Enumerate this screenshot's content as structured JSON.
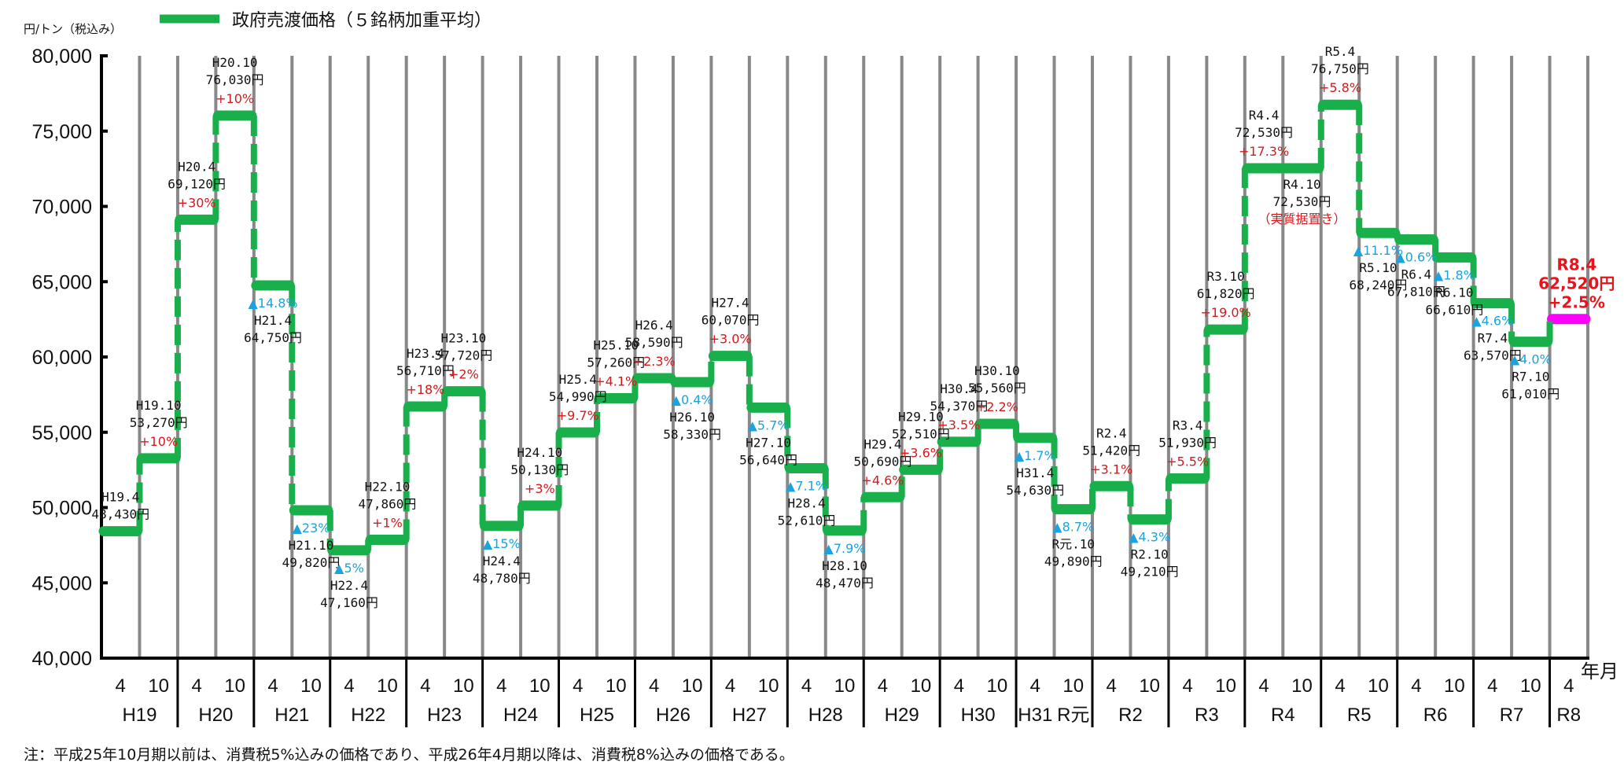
{
  "chart_data": {
    "type": "line",
    "style": "step",
    "title": "政府売渡価格（５銘柄加重平均）",
    "ylabel": "円/トン（税込み）",
    "xlabel": "年月",
    "ylim": [
      40000,
      80000
    ],
    "yticks": [
      {
        "value": 40000,
        "label": "40,000"
      },
      {
        "value": 45000,
        "label": "45,000"
      },
      {
        "value": 50000,
        "label": "50,000"
      },
      {
        "value": 55000,
        "label": "55,000"
      },
      {
        "value": 60000,
        "label": "60,000"
      },
      {
        "value": 65000,
        "label": "65,000"
      },
      {
        "value": 70000,
        "label": "70,000"
      },
      {
        "value": 75000,
        "label": "75,000"
      },
      {
        "value": 80000,
        "label": "80,000"
      }
    ],
    "grid": "vertical",
    "legend": {
      "position": "top",
      "entries": [
        {
          "name": "政府売渡価格（５銘柄加重平均）",
          "color": "#19b04b"
        }
      ]
    },
    "colors": {
      "line": "#19b04b",
      "latest": "#ff00ff",
      "increase": "#d7191c",
      "decrease": "#1aa3df",
      "grid": "#888888"
    },
    "points": [
      {
        "period": "H19.4",
        "value": 48430,
        "value_label": "48,430円",
        "change": ""
      },
      {
        "period": "H19.10",
        "value": 53270,
        "value_label": "53,270円",
        "change": "+10%"
      },
      {
        "period": "H20.4",
        "value": 69120,
        "value_label": "69,120円",
        "change": "+30%"
      },
      {
        "period": "H20.10",
        "value": 76030,
        "value_label": "76,030円",
        "change": "+10%"
      },
      {
        "period": "H21.4",
        "value": 64750,
        "value_label": "64,750円",
        "change": "▲14.8%"
      },
      {
        "period": "H21.10",
        "value": 49820,
        "value_label": "49,820円",
        "change": "▲23%"
      },
      {
        "period": "H22.4",
        "value": 47160,
        "value_label": "47,160円",
        "change": "▲5%"
      },
      {
        "period": "H22.10",
        "value": 47860,
        "value_label": "47,860円",
        "change": "+1%"
      },
      {
        "period": "H23.4",
        "value": 56710,
        "value_label": "56,710円",
        "change": "+18%"
      },
      {
        "period": "H23.10",
        "value": 57720,
        "value_label": "57,720円",
        "change": "+2%"
      },
      {
        "period": "H24.4",
        "value": 48780,
        "value_label": "48,780円",
        "change": "▲15%"
      },
      {
        "period": "H24.10",
        "value": 50130,
        "value_label": "50,130円",
        "change": "+3%"
      },
      {
        "period": "H25.4",
        "value": 54990,
        "value_label": "54,990円",
        "change": "+9.7%"
      },
      {
        "period": "H25.10",
        "value": 57260,
        "value_label": "57,260円",
        "change": "+4.1%"
      },
      {
        "period": "H26.4",
        "value": 58590,
        "value_label": "58,590円",
        "change": "+2.3%"
      },
      {
        "period": "H26.10",
        "value": 58330,
        "value_label": "58,330円",
        "change": "▲0.4%"
      },
      {
        "period": "H27.4",
        "value": 60070,
        "value_label": "60,070円",
        "change": "+3.0%"
      },
      {
        "period": "H27.10",
        "value": 56640,
        "value_label": "56,640円",
        "change": "▲5.7%"
      },
      {
        "period": "H28.4",
        "value": 52610,
        "value_label": "52,610円",
        "change": "▲7.1%"
      },
      {
        "period": "H28.10",
        "value": 48470,
        "value_label": "48,470円",
        "change": "▲7.9%"
      },
      {
        "period": "H29.4",
        "value": 50690,
        "value_label": "50,690円",
        "change": "+4.6%"
      },
      {
        "period": "H29.10",
        "value": 52510,
        "value_label": "52,510円",
        "change": "+3.6%"
      },
      {
        "period": "H30.4",
        "value": 54370,
        "value_label": "54,370円",
        "change": "+3.5%"
      },
      {
        "period": "H30.10",
        "value": 55560,
        "value_label": "55,560円",
        "change": "+2.2%"
      },
      {
        "period": "H31.4",
        "value": 54630,
        "value_label": "54,630円",
        "change": "▲1.7%"
      },
      {
        "period": "R元.10",
        "value": 49890,
        "value_label": "49,890円",
        "change": "▲8.7%"
      },
      {
        "period": "R2.4",
        "value": 51420,
        "value_label": "51,420円",
        "change": "+3.1%"
      },
      {
        "period": "R2.10",
        "value": 49210,
        "value_label": "49,210円",
        "change": "▲4.3%"
      },
      {
        "period": "R3.4",
        "value": 51930,
        "value_label": "51,930円",
        "change": "+5.5%"
      },
      {
        "period": "R3.10",
        "value": 61820,
        "value_label": "61,820円",
        "change": "+19.0%"
      },
      {
        "period": "R4.4",
        "value": 72530,
        "value_label": "72,530円",
        "change": "+17.3%"
      },
      {
        "period": "R4.10",
        "value": 72530,
        "value_label": "72,530円",
        "change": "（実質据置き）"
      },
      {
        "period": "R5.4",
        "value": 76750,
        "value_label": "76,750円",
        "change": "+5.8%"
      },
      {
        "period": "R5.10",
        "value": 68240,
        "value_label": "68,240円",
        "change": "▲11.1%"
      },
      {
        "period": "R6.4",
        "value": 67810,
        "value_label": "67,810円",
        "change": "▲0.6%"
      },
      {
        "period": "R6.10",
        "value": 66610,
        "value_label": "66,610円",
        "change": "▲1.8%"
      },
      {
        "period": "R7.4",
        "value": 63570,
        "value_label": "63,570円",
        "change": "▲4.6%"
      },
      {
        "period": "R7.10",
        "value": 61010,
        "value_label": "61,010円",
        "change": "▲4.0%"
      },
      {
        "period": "R8.4",
        "value": 62520,
        "value_label": "62,520円",
        "change": "+2.5%",
        "highlight": true
      }
    ],
    "year_groups": [
      {
        "labels": [
          "H19"
        ],
        "months": [
          "4",
          "10"
        ]
      },
      {
        "labels": [
          "H20"
        ],
        "months": [
          "4",
          "10"
        ]
      },
      {
        "labels": [
          "H21"
        ],
        "months": [
          "4",
          "10"
        ]
      },
      {
        "labels": [
          "H22"
        ],
        "months": [
          "4",
          "10"
        ]
      },
      {
        "labels": [
          "H23"
        ],
        "months": [
          "4",
          "10"
        ]
      },
      {
        "labels": [
          "H24"
        ],
        "months": [
          "4",
          "10"
        ]
      },
      {
        "labels": [
          "H25"
        ],
        "months": [
          "4",
          "10"
        ]
      },
      {
        "labels": [
          "H26"
        ],
        "months": [
          "4",
          "10"
        ]
      },
      {
        "labels": [
          "H27"
        ],
        "months": [
          "4",
          "10"
        ]
      },
      {
        "labels": [
          "H28"
        ],
        "months": [
          "4",
          "10"
        ]
      },
      {
        "labels": [
          "H29"
        ],
        "months": [
          "4",
          "10"
        ]
      },
      {
        "labels": [
          "H30"
        ],
        "months": [
          "4",
          "10"
        ]
      },
      {
        "labels": [
          "H31",
          "R元"
        ],
        "months": [
          "4",
          "10"
        ]
      },
      {
        "labels": [
          "R2"
        ],
        "months": [
          "4",
          "10"
        ]
      },
      {
        "labels": [
          "R3"
        ],
        "months": [
          "4",
          "10"
        ]
      },
      {
        "labels": [
          "R4"
        ],
        "months": [
          "4",
          "10"
        ]
      },
      {
        "labels": [
          "R5"
        ],
        "months": [
          "4",
          "10"
        ]
      },
      {
        "labels": [
          "R6"
        ],
        "months": [
          "4",
          "10"
        ]
      },
      {
        "labels": [
          "R7"
        ],
        "months": [
          "4",
          "10"
        ]
      },
      {
        "labels": [
          "R8"
        ],
        "months": [
          "4"
        ]
      }
    ]
  },
  "footnote": "注：平成25年10月期以前は、消費税5%込みの価格であり、平成26年4月期以降は、消費税8%込みの価格である。"
}
